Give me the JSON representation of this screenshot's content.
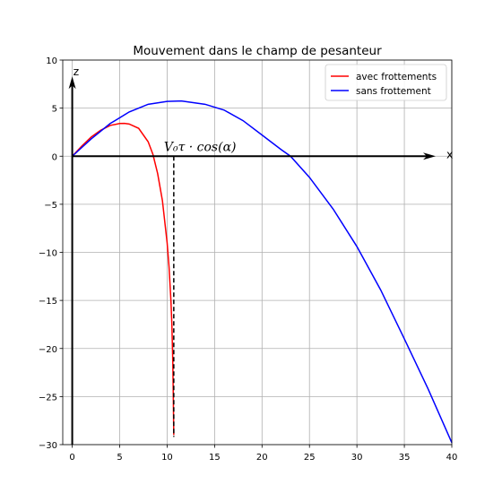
{
  "chart_data": {
    "type": "line",
    "title": "Mouvement dans le champ de pesanteur",
    "xlabel": "",
    "ylabel": "",
    "xlim": [
      -1,
      40
    ],
    "ylim": [
      -30,
      10
    ],
    "xticks": [
      0,
      5,
      10,
      15,
      20,
      25,
      30,
      35,
      40
    ],
    "yticks": [
      10,
      5,
      0,
      -5,
      -10,
      -15,
      -20,
      -25,
      -30
    ],
    "grid": true,
    "legend_position": "top-right",
    "axis_arrows": {
      "x_label": "x",
      "z_label": "z"
    },
    "annotation": {
      "text": "V₀τ · cos(α)",
      "x": 10.7
    },
    "series": [
      {
        "name": "avec frottements",
        "color": "#ff0000",
        "x": [
          0,
          1,
          2,
          3,
          4,
          5,
          5.5,
          6,
          7,
          8,
          8.5,
          9,
          9.5,
          10,
          10.2,
          10.4,
          10.5,
          10.6,
          10.65,
          10.7
        ],
        "y": [
          0,
          1.05,
          2.0,
          2.7,
          3.2,
          3.4,
          3.42,
          3.35,
          2.9,
          1.5,
          0.2,
          -1.8,
          -4.6,
          -9.0,
          -11.5,
          -15.0,
          -17.5,
          -21.5,
          -25.0,
          -29.0
        ]
      },
      {
        "name": "sans frottement",
        "color": "#0000ff",
        "x": [
          0,
          2,
          4,
          6,
          8,
          10,
          11.5,
          14,
          16,
          18,
          20,
          22,
          23,
          25,
          27.5,
          30,
          32.5,
          35,
          37.5,
          40
        ],
        "y": [
          0,
          1.8,
          3.4,
          4.6,
          5.4,
          5.7,
          5.75,
          5.4,
          4.8,
          3.7,
          2.2,
          0.7,
          0,
          -2.2,
          -5.5,
          -9.4,
          -13.9,
          -19.0,
          -24.2,
          -29.8
        ]
      }
    ]
  }
}
